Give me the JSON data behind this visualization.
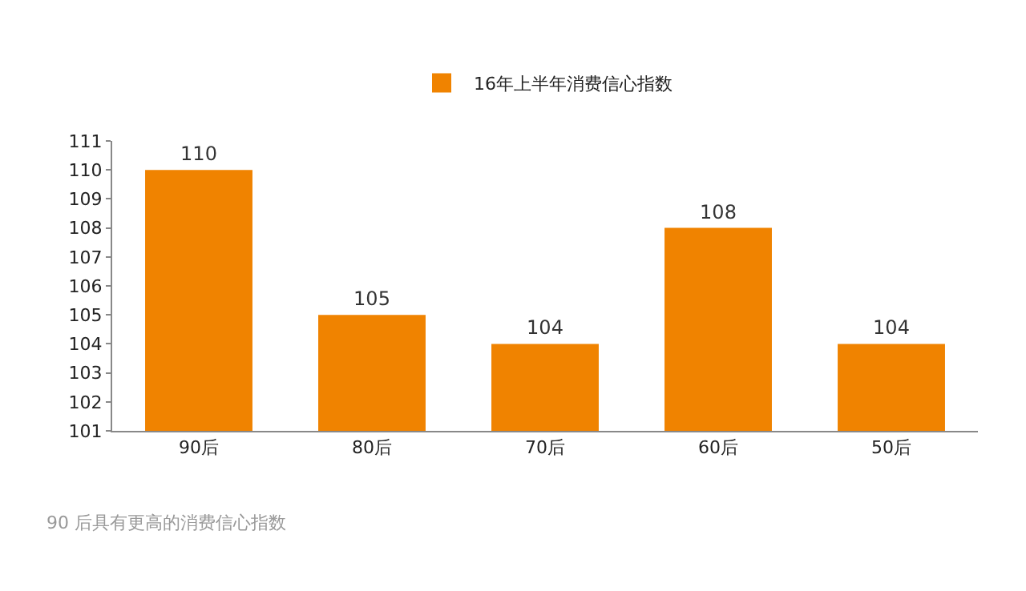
{
  "chart_data": {
    "type": "bar",
    "categories": [
      "90后",
      "80后",
      "70后",
      "60后",
      "50后"
    ],
    "series": [
      {
        "name": "16年上半年消费信心指数",
        "color": "#f08300",
        "values": [
          110,
          105,
          104,
          108,
          104
        ]
      }
    ],
    "ylim": [
      101,
      111
    ],
    "yticks": [
      101,
      102,
      103,
      104,
      105,
      106,
      107,
      108,
      109,
      110,
      111
    ],
    "data_labels": true,
    "legend": "top",
    "annotations": [
      "90 后具有更高的消费信心指数"
    ]
  }
}
